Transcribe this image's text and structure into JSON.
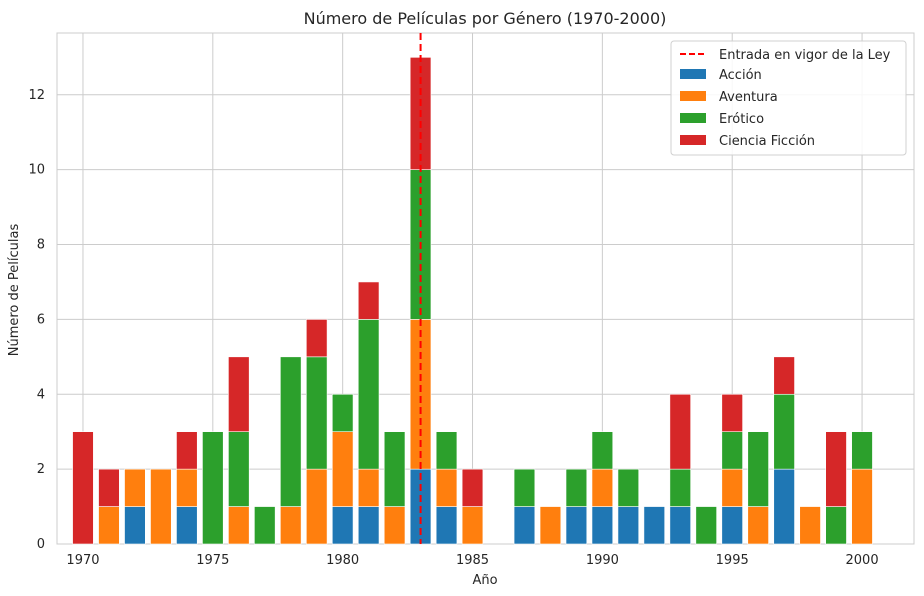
{
  "chart_data": {
    "type": "bar",
    "stacked": true,
    "title": "Número de Películas por Género (1970-2000)",
    "xlabel": "Año",
    "ylabel": "Número de Películas",
    "xlim": [
      1969.0,
      2002.0
    ],
    "ylim": [
      0,
      13.65
    ],
    "xticks": [
      1970,
      1975,
      1980,
      1985,
      1990,
      1995,
      2000
    ],
    "yticks": [
      0,
      2,
      4,
      6,
      8,
      10,
      12
    ],
    "grid": true,
    "legend_position": "top-right",
    "x": [
      1970,
      1971,
      1972,
      1973,
      1974,
      1975,
      1976,
      1977,
      1978,
      1979,
      1980,
      1981,
      1982,
      1983,
      1984,
      1985,
      1986,
      1987,
      1988,
      1989,
      1990,
      1991,
      1992,
      1993,
      1994,
      1995,
      1996,
      1997,
      1998,
      1999,
      2000
    ],
    "series": [
      {
        "name": "Acción",
        "color": "#1f77b4",
        "values": [
          0,
          0,
          1,
          0,
          1,
          0,
          0,
          0,
          0,
          0,
          1,
          1,
          0,
          2,
          1,
          0,
          0,
          1,
          0,
          1,
          1,
          1,
          1,
          1,
          0,
          1,
          0,
          2,
          0,
          0,
          0
        ]
      },
      {
        "name": "Aventura",
        "color": "#ff7f0e",
        "values": [
          0,
          1,
          1,
          2,
          1,
          0,
          1,
          0,
          1,
          2,
          2,
          1,
          1,
          4,
          1,
          1,
          0,
          0,
          1,
          0,
          1,
          0,
          0,
          0,
          0,
          1,
          1,
          0,
          1,
          0,
          2
        ]
      },
      {
        "name": "Erótico",
        "color": "#2ca02c",
        "values": [
          0,
          0,
          0,
          0,
          0,
          3,
          2,
          1,
          4,
          3,
          1,
          4,
          2,
          4,
          1,
          0,
          0,
          1,
          0,
          1,
          1,
          1,
          0,
          1,
          1,
          1,
          2,
          2,
          0,
          1,
          1
        ]
      },
      {
        "name": "Ciencia Ficción",
        "color": "#d62728",
        "values": [
          3,
          1,
          0,
          0,
          1,
          0,
          2,
          0,
          0,
          1,
          0,
          1,
          0,
          3,
          0,
          1,
          0,
          0,
          0,
          0,
          0,
          0,
          0,
          2,
          0,
          1,
          0,
          1,
          0,
          2,
          0
        ]
      }
    ],
    "reference_line": {
      "x": 1983,
      "label": "Entrada en vigor de la Ley",
      "color": "#ff0000",
      "style": "dashed"
    }
  }
}
